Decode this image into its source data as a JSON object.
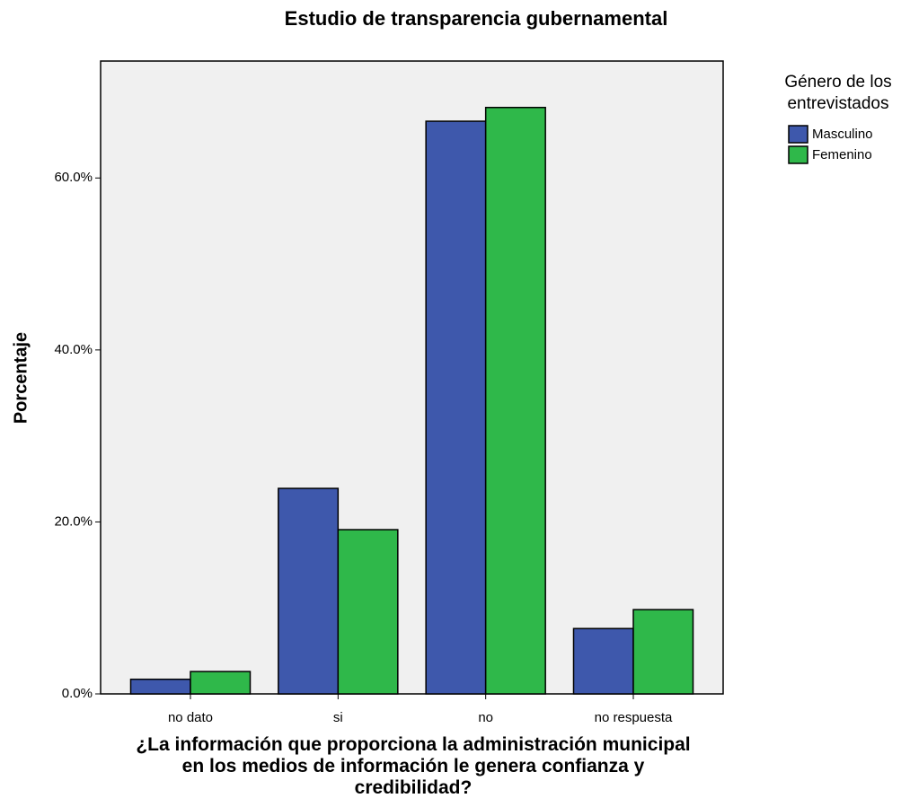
{
  "chart_data": {
    "type": "bar",
    "title": "Estudio de transparencia gubernamental",
    "x_label": "¿La información que proporciona la administración municipal en los medios de información le genera confianza y credibilidad?",
    "y_label": "Porcentaje",
    "legend_title": "Género de los entrevistados",
    "categories": [
      "no dato",
      "si",
      "no",
      "no respuesta"
    ],
    "series": [
      {
        "name": "Masculino",
        "color": "#3e58ac",
        "values": [
          1.7,
          23.9,
          66.6,
          7.6
        ]
      },
      {
        "name": "Femenino",
        "color": "#2fb84a",
        "values": [
          2.6,
          19.1,
          68.2,
          9.8
        ]
      }
    ],
    "ylim": [
      0,
      73.6
    ],
    "yticks": [
      {
        "value": 0,
        "label": "0.0%"
      },
      {
        "value": 20,
        "label": "20.0%"
      },
      {
        "value": 40,
        "label": "40.0%"
      },
      {
        "value": 60,
        "label": "60.0%"
      }
    ],
    "legend_position": "right"
  }
}
